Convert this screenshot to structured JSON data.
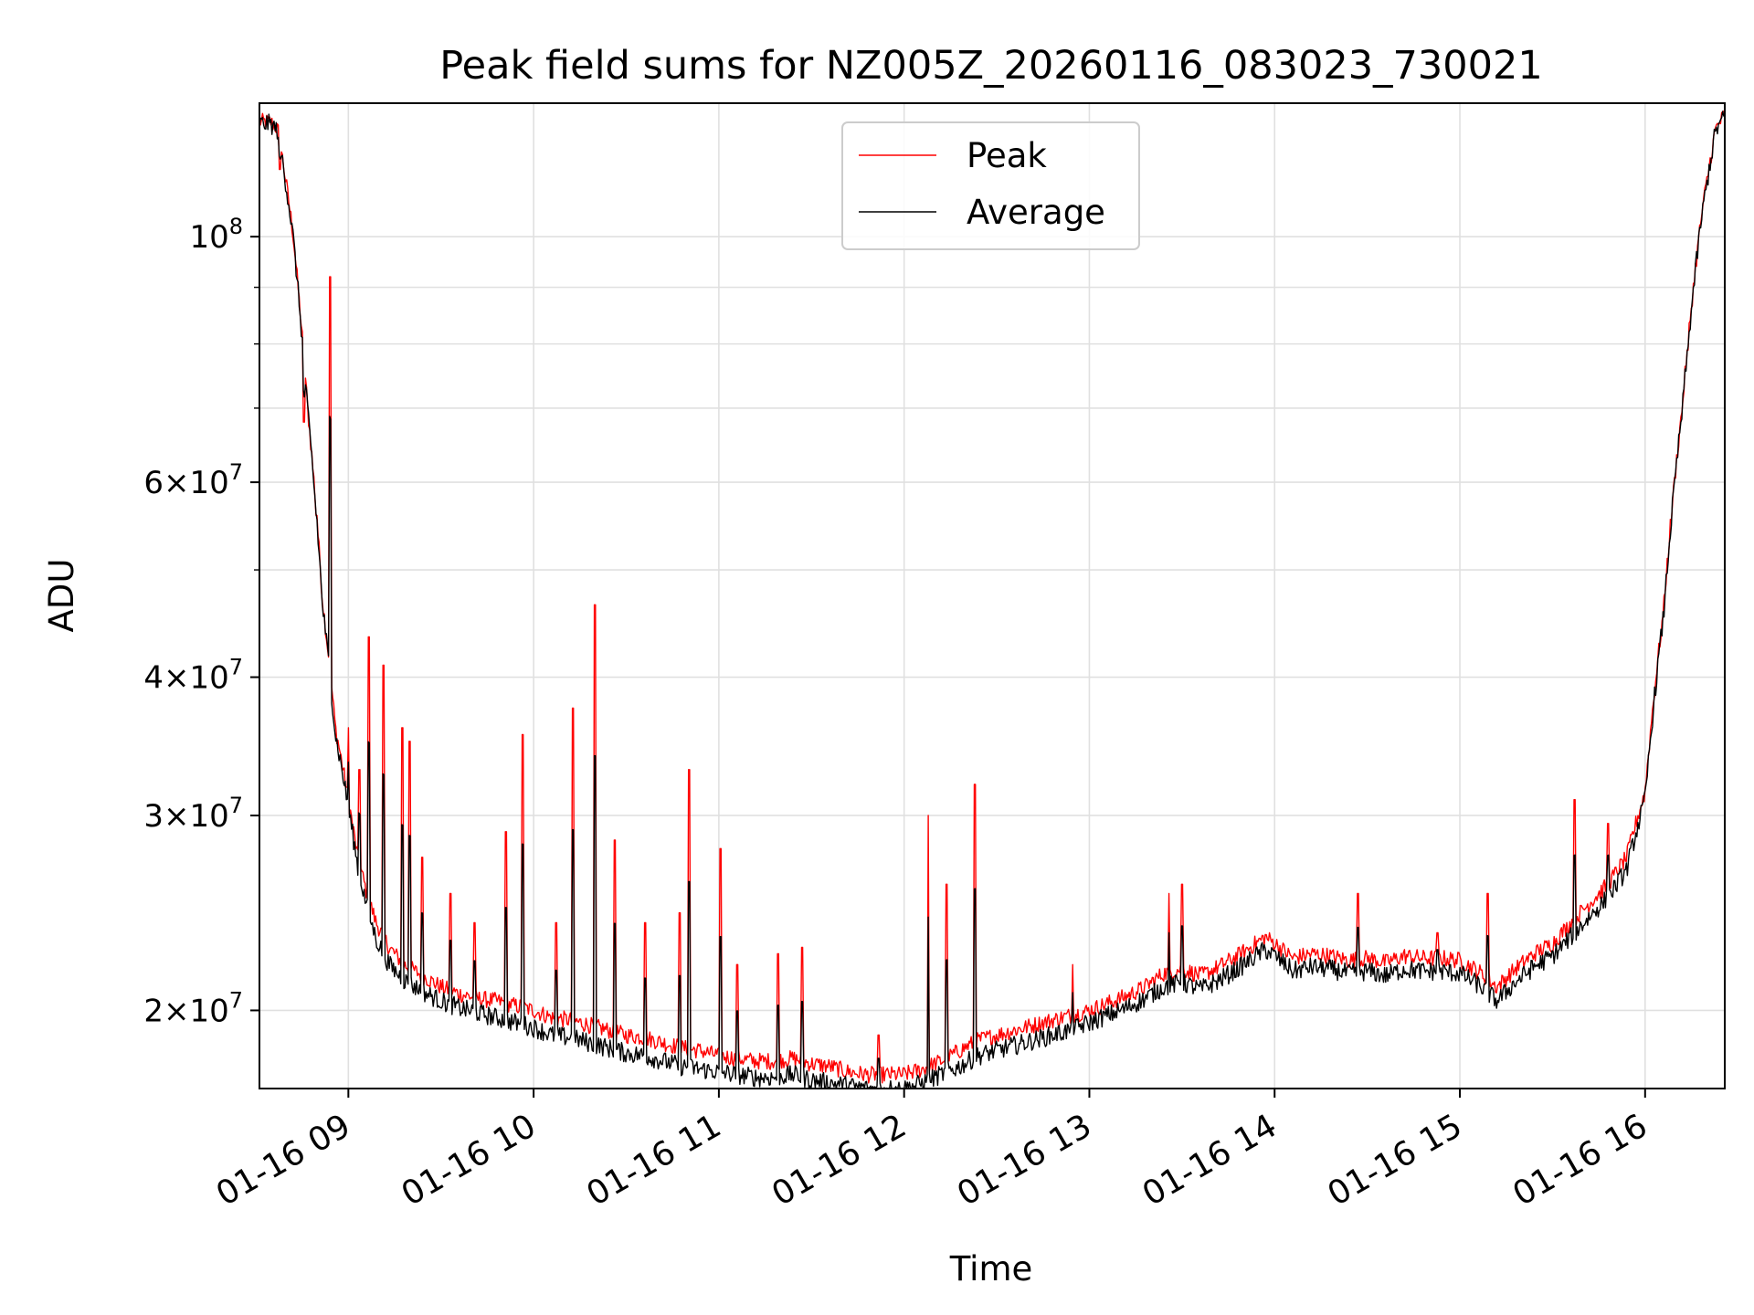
{
  "chart_data": {
    "type": "line",
    "title": "Peak field sums for NZ005Z_20260116_083023_730021",
    "xlabel": "Time",
    "ylabel": "ADU",
    "yscale": "log",
    "grid": true,
    "legend_location": "upper center",
    "xlim_hours": [
      8.52,
      16.43
    ],
    "ylim": [
      17000000,
      132000000
    ],
    "x_ticks": [
      {
        "h": 9,
        "label": "01-16 09"
      },
      {
        "h": 10,
        "label": "01-16 10"
      },
      {
        "h": 11,
        "label": "01-16 11"
      },
      {
        "h": 12,
        "label": "01-16 12"
      },
      {
        "h": 13,
        "label": "01-16 13"
      },
      {
        "h": 14,
        "label": "01-16 14"
      },
      {
        "h": 15,
        "label": "01-16 15"
      },
      {
        "h": 16,
        "label": "01-16 16"
      }
    ],
    "y_major_ticks": [
      {
        "v": 20000000,
        "base": "2",
        "sup": "7"
      },
      {
        "v": 30000000,
        "base": "3",
        "sup": "7"
      },
      {
        "v": 40000000,
        "base": "4",
        "sup": "7"
      },
      {
        "v": 60000000,
        "base": "6",
        "sup": "7"
      },
      {
        "v": 100000000,
        "base": "",
        "sup": "8"
      }
    ],
    "y_minor_ticks": [
      50000000,
      70000000,
      80000000,
      90000000
    ],
    "series": [
      {
        "name": "Peak",
        "color": "#ff0000",
        "x_hours": [
          8.52,
          8.58,
          8.62,
          8.7,
          8.78,
          8.86,
          8.93,
          9.0,
          9.05,
          9.1,
          9.15,
          9.22,
          9.3,
          9.4,
          9.5,
          9.6,
          9.7,
          9.8,
          9.9,
          10.0,
          10.1,
          10.2,
          10.3,
          10.4,
          10.5,
          10.6,
          10.7,
          10.8,
          10.9,
          11.0,
          11.1,
          11.2,
          11.3,
          11.4,
          11.5,
          11.6,
          11.7,
          11.8,
          11.9,
          12.0,
          12.1,
          12.2,
          12.3,
          12.4,
          12.5,
          12.6,
          12.7,
          12.8,
          12.9,
          13.0,
          13.1,
          13.2,
          13.3,
          13.4,
          13.5,
          13.6,
          13.7,
          13.8,
          13.9,
          13.95,
          14.0,
          14.1,
          14.2,
          14.3,
          14.4,
          14.5,
          14.6,
          14.7,
          14.8,
          14.9,
          15.0,
          15.1,
          15.2,
          15.3,
          15.4,
          15.5,
          15.6,
          15.7,
          15.8,
          15.9,
          16.0,
          16.1,
          16.2,
          16.3,
          16.38,
          16.43
        ],
        "values": [
          127000000,
          127000000,
          125000000,
          101000000,
          70000000,
          47000000,
          36000000,
          31000000,
          27500000,
          25500000,
          24000000,
          22800000,
          22000000,
          21500000,
          21000000,
          20700000,
          20500000,
          20400000,
          20200000,
          20000000,
          19700000,
          19600000,
          19400000,
          19200000,
          19000000,
          18900000,
          18700000,
          18500000,
          18400000,
          18200000,
          18100000,
          18000000,
          18000000,
          18100000,
          17900000,
          17800000,
          17600000,
          17500000,
          17500000,
          17500000,
          17700000,
          18000000,
          18400000,
          18800000,
          19000000,
          19200000,
          19400000,
          19600000,
          19800000,
          20000000,
          20300000,
          20600000,
          21000000,
          21600000,
          21800000,
          21500000,
          21900000,
          22400000,
          23000000,
          23300000,
          23000000,
          22300000,
          22500000,
          22400000,
          22200000,
          22300000,
          22100000,
          22400000,
          22300000,
          22300000,
          22200000,
          21700000,
          21000000,
          21800000,
          22500000,
          23000000,
          24000000,
          25000000,
          26000000,
          27500000,
          31500000,
          46000000,
          70000000,
          103000000,
          125000000,
          129000000
        ]
      },
      {
        "name": "Average",
        "color": "#000000",
        "x_hours": [
          8.52,
          8.58,
          8.62,
          8.7,
          8.78,
          8.86,
          8.93,
          9.0,
          9.05,
          9.1,
          9.15,
          9.22,
          9.3,
          9.4,
          9.5,
          9.6,
          9.7,
          9.8,
          9.9,
          10.0,
          10.1,
          10.2,
          10.3,
          10.4,
          10.5,
          10.6,
          10.7,
          10.8,
          10.9,
          11.0,
          11.1,
          11.2,
          11.3,
          11.4,
          11.5,
          11.6,
          11.7,
          11.8,
          11.9,
          12.0,
          12.1,
          12.2,
          12.3,
          12.4,
          12.5,
          12.6,
          12.7,
          12.8,
          12.9,
          13.0,
          13.1,
          13.2,
          13.3,
          13.4,
          13.5,
          13.6,
          13.7,
          13.8,
          13.9,
          13.95,
          14.0,
          14.1,
          14.2,
          14.3,
          14.4,
          14.5,
          14.6,
          14.7,
          14.8,
          14.9,
          15.0,
          15.1,
          15.2,
          15.3,
          15.4,
          15.5,
          15.6,
          15.7,
          15.8,
          15.9,
          16.0,
          16.1,
          16.2,
          16.3,
          16.38,
          16.43
        ],
        "values": [
          126500000,
          126500000,
          124500000,
          100500000,
          69500000,
          46500000,
          35500000,
          30500000,
          27000000,
          24800000,
          23200000,
          22000000,
          21300000,
          20800000,
          20400000,
          20100000,
          19900000,
          19700000,
          19500000,
          19300000,
          19000000,
          18900000,
          18700000,
          18500000,
          18300000,
          18200000,
          18000000,
          17800000,
          17700000,
          17600000,
          17500000,
          17400000,
          17400000,
          17500000,
          17300000,
          17200000,
          17100000,
          17000000,
          17000000,
          17000000,
          17200000,
          17500000,
          17800000,
          18200000,
          18400000,
          18600000,
          18800000,
          19000000,
          19200000,
          19500000,
          19800000,
          20100000,
          20500000,
          21000000,
          21200000,
          20900000,
          21300000,
          21800000,
          22400000,
          22700000,
          22400000,
          21700000,
          21900000,
          21800000,
          21600000,
          21700000,
          21500000,
          21800000,
          21700000,
          21700000,
          21600000,
          21100000,
          20400000,
          21200000,
          21900000,
          22400000,
          23300000,
          24300000,
          25300000,
          26800000,
          31000000,
          45500000,
          69500000,
          102500000,
          124500000,
          128500000
        ]
      }
    ],
    "spikes": [
      {
        "h": 8.63,
        "v": 115000000
      },
      {
        "h": 8.76,
        "v": 68000000
      },
      {
        "h": 8.83,
        "v": 56000000
      },
      {
        "h": 8.9,
        "v": 92000000
      },
      {
        "h": 9.0,
        "v": 36000000
      },
      {
        "h": 9.06,
        "v": 33000000
      },
      {
        "h": 9.11,
        "v": 43500000
      },
      {
        "h": 9.19,
        "v": 41000000
      },
      {
        "h": 9.29,
        "v": 36000000
      },
      {
        "h": 9.33,
        "v": 35000000
      },
      {
        "h": 9.4,
        "v": 27500000
      },
      {
        "h": 9.55,
        "v": 25500000
      },
      {
        "h": 9.68,
        "v": 24000000
      },
      {
        "h": 9.85,
        "v": 29000000
      },
      {
        "h": 9.94,
        "v": 35500000
      },
      {
        "h": 10.12,
        "v": 24000000
      },
      {
        "h": 10.21,
        "v": 37500000
      },
      {
        "h": 10.33,
        "v": 46500000
      },
      {
        "h": 10.44,
        "v": 28500000
      },
      {
        "h": 10.6,
        "v": 24000000
      },
      {
        "h": 10.79,
        "v": 24500000
      },
      {
        "h": 10.84,
        "v": 33000000
      },
      {
        "h": 11.01,
        "v": 28000000
      },
      {
        "h": 11.1,
        "v": 22000000
      },
      {
        "h": 11.32,
        "v": 22500000
      },
      {
        "h": 11.45,
        "v": 22800000
      },
      {
        "h": 11.86,
        "v": 19000000
      },
      {
        "h": 12.13,
        "v": 30000000
      },
      {
        "h": 12.23,
        "v": 26000000
      },
      {
        "h": 12.38,
        "v": 32000000
      },
      {
        "h": 12.91,
        "v": 22000000
      },
      {
        "h": 13.43,
        "v": 25500000
      },
      {
        "h": 13.5,
        "v": 26000000
      },
      {
        "h": 14.45,
        "v": 25500000
      },
      {
        "h": 14.88,
        "v": 23500000
      },
      {
        "h": 15.15,
        "v": 25500000
      },
      {
        "h": 15.62,
        "v": 31000000
      },
      {
        "h": 15.8,
        "v": 29500000
      },
      {
        "h": 16.23,
        "v": 79000000
      }
    ]
  }
}
